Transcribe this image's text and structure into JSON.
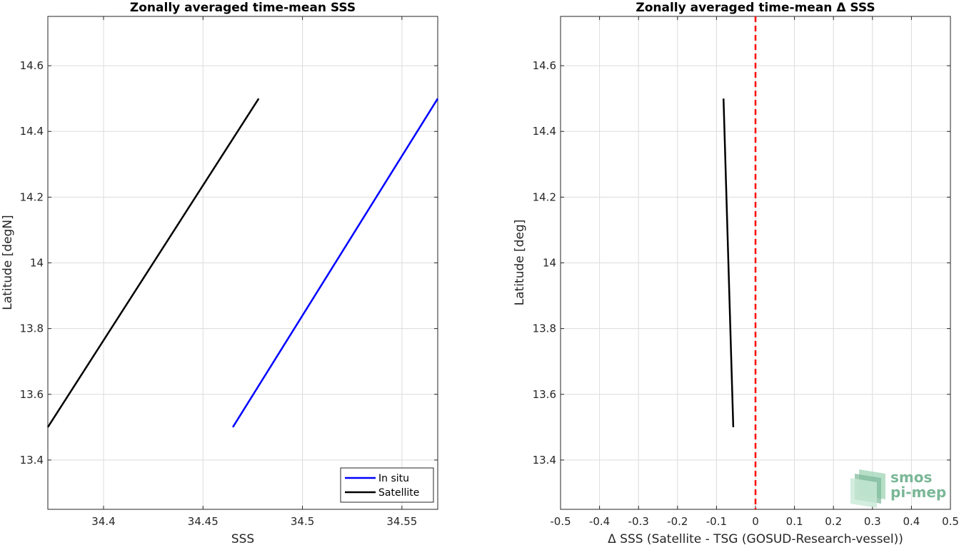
{
  "chart_data": [
    {
      "type": "line",
      "title": "Zonally averaged time-mean SSS",
      "xlabel": "SSS",
      "ylabel": "Latitude [degN]",
      "xlim": [
        34.372,
        34.568
      ],
      "ylim": [
        13.25,
        14.75
      ],
      "xticks": [
        34.4,
        34.45,
        34.5,
        34.55
      ],
      "xtick_labels": [
        "34.4",
        "34.45",
        "34.5",
        "34.55"
      ],
      "yticks": [
        13.4,
        13.6,
        13.8,
        14.0,
        14.2,
        14.4,
        14.6
      ],
      "ytick_labels": [
        "13.4",
        "13.6",
        "13.8",
        "14",
        "14.2",
        "14.4",
        "14.6"
      ],
      "grid": true,
      "legend": {
        "placement": "bottom-right"
      },
      "series": [
        {
          "name": "In situ",
          "color": "#0000ff",
          "x": [
            34.465,
            34.568
          ],
          "y": [
            13.5,
            14.5
          ]
        },
        {
          "name": "Satellite",
          "color": "#000000",
          "x": [
            34.372,
            34.478
          ],
          "y": [
            13.5,
            14.5
          ]
        }
      ]
    },
    {
      "type": "line",
      "title": "Zonally averaged time-mean Δ SSS",
      "xlabel": "Δ SSS (Satellite - TSG (GOSUD-Research-vessel))",
      "ylabel": "Latitude [deg]",
      "xlim": [
        -0.5,
        0.5
      ],
      "ylim": [
        13.25,
        14.75
      ],
      "xticks": [
        -0.5,
        -0.4,
        -0.3,
        -0.2,
        -0.1,
        0,
        0.1,
        0.2,
        0.3,
        0.4,
        0.5
      ],
      "xtick_labels": [
        "-0.5",
        "-0.4",
        "-0.3",
        "-0.2",
        "-0.1",
        "0",
        "0.1",
        "0.2",
        "0.3",
        "0.4",
        "0.5"
      ],
      "yticks": [
        13.4,
        13.6,
        13.8,
        14.0,
        14.2,
        14.4,
        14.6
      ],
      "ytick_labels": [
        "13.4",
        "13.6",
        "13.8",
        "14",
        "14.2",
        "14.4",
        "14.6"
      ],
      "grid": true,
      "series": [
        {
          "color": "#000000",
          "x": [
            -0.057,
            -0.082
          ],
          "y": [
            13.5,
            14.5
          ]
        }
      ],
      "reference_line": {
        "x": 0,
        "color": "#ff0000",
        "style": "dashed"
      }
    }
  ],
  "logo": {
    "line1": "smos",
    "line2": "pi-mep"
  }
}
